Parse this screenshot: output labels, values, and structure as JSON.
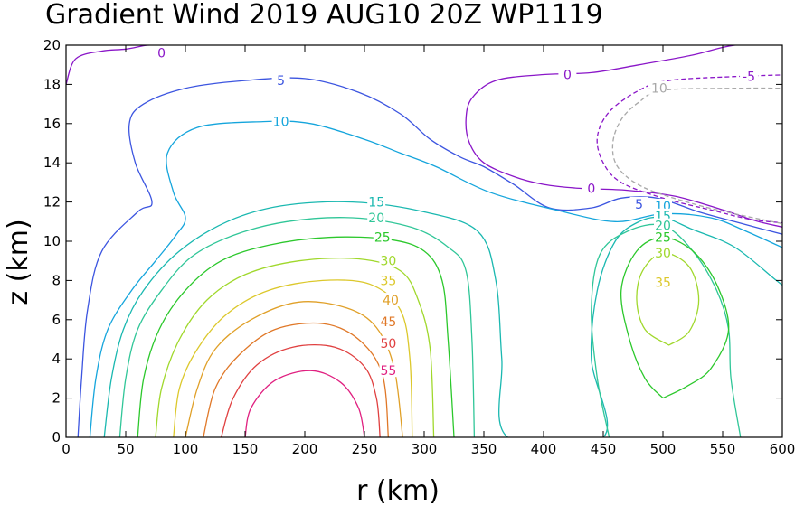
{
  "chart_data": {
    "type": "contour",
    "title": "Gradient Wind 2019 AUG10 20Z  WP1119",
    "xlabel": "r (km)",
    "ylabel": "z (km)",
    "xlim": [
      0,
      600
    ],
    "ylim": [
      0,
      20
    ],
    "x_ticks": [
      0,
      50,
      100,
      150,
      200,
      250,
      300,
      350,
      400,
      450,
      500,
      550,
      600
    ],
    "y_ticks": [
      0,
      2,
      4,
      6,
      8,
      10,
      12,
      14,
      16,
      18,
      20
    ],
    "grid": false,
    "contours": [
      {
        "level": "0",
        "color": "#8a16c8",
        "dashed": false,
        "labels": [
          [
            80,
            19.6
          ]
        ],
        "points": [
          [
            0,
            18
          ],
          [
            8,
            19.3
          ],
          [
            30,
            19.7
          ],
          [
            50,
            19.8
          ],
          [
            68,
            20.0
          ],
          [
            80,
            20.0
          ]
        ]
      },
      {
        "level": "0",
        "color": "#8a16c8",
        "dashed": false,
        "labels": [
          [
            420,
            18.5
          ],
          [
            440,
            12.7
          ]
        ],
        "points": [
          [
            610,
            20.2
          ],
          [
            560,
            20.0
          ],
          [
            525,
            19.5
          ],
          [
            480,
            19.0
          ],
          [
            440,
            18.6
          ],
          [
            400,
            18.5
          ],
          [
            360,
            18.2
          ],
          [
            340,
            17.3
          ],
          [
            335,
            16.2
          ],
          [
            338,
            15.0
          ],
          [
            350,
            14.0
          ],
          [
            375,
            13.3
          ],
          [
            400,
            12.9
          ],
          [
            430,
            12.7
          ],
          [
            470,
            12.6
          ],
          [
            510,
            12.3
          ],
          [
            550,
            11.6
          ],
          [
            580,
            11.0
          ],
          [
            610,
            10.6
          ]
        ]
      },
      {
        "level": "-5",
        "color": "#8a16c8",
        "dashed": true,
        "labels": [
          [
            572,
            18.4
          ]
        ],
        "points": [
          [
            610,
            18.5
          ],
          [
            560,
            18.4
          ],
          [
            505,
            18.2
          ],
          [
            480,
            17.7
          ],
          [
            455,
            16.6
          ],
          [
            445,
            15.3
          ],
          [
            450,
            14.0
          ],
          [
            465,
            13.0
          ],
          [
            500,
            12.2
          ],
          [
            540,
            11.6
          ],
          [
            575,
            11.1
          ],
          [
            610,
            10.9
          ]
        ]
      },
      {
        "level": "-10",
        "color": "#a8a8a8",
        "dashed": true,
        "labels": [
          [
            495,
            17.8
          ]
        ],
        "points": [
          [
            610,
            17.8
          ],
          [
            560,
            17.8
          ],
          [
            500,
            17.7
          ],
          [
            480,
            17.1
          ],
          [
            465,
            16.2
          ],
          [
            458,
            15.0
          ],
          [
            462,
            13.8
          ],
          [
            482,
            12.8
          ],
          [
            520,
            12.0
          ],
          [
            560,
            11.4
          ],
          [
            600,
            10.9
          ]
        ]
      },
      {
        "level": "5",
        "color": "#3c55e0",
        "dashed": false,
        "labels": [
          [
            180,
            18.2
          ],
          [
            480,
            11.9
          ]
        ],
        "points": [
          [
            10,
            0
          ],
          [
            13,
            3
          ],
          [
            18,
            6.5
          ],
          [
            30,
            9.5
          ],
          [
            60,
            11.5
          ],
          [
            72,
            12.0
          ],
          [
            58,
            14.0
          ],
          [
            53,
            16.0
          ],
          [
            65,
            17.0
          ],
          [
            100,
            17.8
          ],
          [
            150,
            18.2
          ],
          [
            200,
            18.3
          ],
          [
            245,
            17.6
          ],
          [
            280,
            16.5
          ],
          [
            305,
            15.2
          ],
          [
            330,
            14.3
          ],
          [
            350,
            13.8
          ],
          [
            375,
            12.9
          ],
          [
            405,
            11.7
          ],
          [
            440,
            11.7
          ],
          [
            465,
            12.2
          ],
          [
            495,
            12.2
          ],
          [
            530,
            11.5
          ],
          [
            560,
            11.0
          ],
          [
            610,
            10.2
          ]
        ]
      },
      {
        "level": "10",
        "color": "#15a5dc",
        "dashed": false,
        "labels": [
          [
            180,
            16.1
          ],
          [
            500,
            11.8
          ]
        ],
        "points": [
          [
            20,
            0
          ],
          [
            25,
            3
          ],
          [
            35,
            5.5
          ],
          [
            55,
            7.5
          ],
          [
            75,
            9.0
          ],
          [
            92,
            10.3
          ],
          [
            100,
            11.2
          ],
          [
            90,
            12.5
          ],
          [
            85,
            14.5
          ],
          [
            110,
            15.8
          ],
          [
            165,
            16.1
          ],
          [
            205,
            16.0
          ],
          [
            250,
            15.2
          ],
          [
            280,
            14.5
          ],
          [
            310,
            13.8
          ],
          [
            355,
            12.5
          ],
          [
            410,
            11.6
          ],
          [
            460,
            11.0
          ],
          [
            500,
            11.4
          ],
          [
            540,
            11.2
          ],
          [
            570,
            10.5
          ],
          [
            610,
            9.4
          ]
        ]
      },
      {
        "level": "15",
        "color": "#1ab8b0",
        "dashed": false,
        "labels": [
          [
            260,
            12.0
          ],
          [
            500,
            11.3
          ]
        ],
        "points": [
          [
            32,
            0
          ],
          [
            38,
            3
          ],
          [
            48,
            5.5
          ],
          [
            65,
            7.5
          ],
          [
            95,
            9.5
          ],
          [
            135,
            11.0
          ],
          [
            180,
            11.8
          ],
          [
            240,
            12.0
          ],
          [
            300,
            11.5
          ],
          [
            345,
            10.5
          ],
          [
            360,
            8.0
          ],
          [
            365,
            4.0
          ],
          [
            370,
            0
          ],
          [
            450,
            0
          ],
          [
            440,
            4.0
          ],
          [
            445,
            7.5
          ],
          [
            460,
            10.0
          ],
          [
            480,
            11.0
          ],
          [
            500,
            11.2
          ],
          [
            525,
            10.6
          ],
          [
            560,
            9.7
          ],
          [
            595,
            8.0
          ],
          [
            610,
            7.3
          ]
        ]
      },
      {
        "level": "20",
        "color": "#30c698",
        "dashed": false,
        "labels": [
          [
            260,
            11.2
          ],
          [
            500,
            10.8
          ]
        ],
        "points": [
          [
            45,
            0
          ],
          [
            50,
            3
          ],
          [
            60,
            5.5
          ],
          [
            80,
            7.5
          ],
          [
            105,
            9.2
          ],
          [
            140,
            10.3
          ],
          [
            185,
            11.0
          ],
          [
            240,
            11.2
          ],
          [
            290,
            10.7
          ],
          [
            320,
            9.7
          ],
          [
            335,
            8.5
          ],
          [
            340,
            5.0
          ],
          [
            342,
            0
          ]
        ]
      },
      {
        "level": "20",
        "color": "#30c698",
        "dashed": false,
        "labels": [],
        "points": [
          [
            565,
            0
          ],
          [
            557,
            3.0
          ],
          [
            555,
            5.5
          ],
          [
            545,
            7.5
          ],
          [
            525,
            9.5
          ],
          [
            500,
            10.8
          ],
          [
            470,
            10.5
          ],
          [
            447,
            9.3
          ],
          [
            440,
            6.5
          ],
          [
            445,
            3.0
          ],
          [
            455,
            0.0
          ]
        ]
      },
      {
        "level": "25",
        "color": "#2cc82c",
        "dashed": false,
        "labels": [
          [
            265,
            10.2
          ],
          [
            500,
            10.2
          ]
        ],
        "points": [
          [
            60,
            0
          ],
          [
            65,
            3
          ],
          [
            78,
            5.5
          ],
          [
            100,
            7.5
          ],
          [
            130,
            9.0
          ],
          [
            170,
            9.8
          ],
          [
            220,
            10.2
          ],
          [
            270,
            10.1
          ],
          [
            300,
            9.5
          ],
          [
            315,
            8.0
          ],
          [
            320,
            5.0
          ],
          [
            325,
            0
          ]
        ]
      },
      {
        "level": "25",
        "color": "#2cc82c",
        "dashed": false,
        "labels": [],
        "points": [
          [
            500,
            2.0
          ],
          [
            520,
            2.6
          ],
          [
            540,
            3.5
          ],
          [
            555,
            5.5
          ],
          [
            545,
            7.8
          ],
          [
            525,
            9.5
          ],
          [
            500,
            10.2
          ],
          [
            478,
            9.5
          ],
          [
            465,
            7.5
          ],
          [
            472,
            5.0
          ],
          [
            485,
            3.0
          ],
          [
            500,
            2.0
          ]
        ]
      },
      {
        "level": "30",
        "color": "#a0d82c",
        "dashed": false,
        "labels": [
          [
            270,
            9.0
          ],
          [
            500,
            9.4
          ]
        ],
        "points": [
          [
            75,
            0
          ],
          [
            80,
            2.5
          ],
          [
            95,
            5.0
          ],
          [
            118,
            7.0
          ],
          [
            150,
            8.3
          ],
          [
            195,
            9.0
          ],
          [
            245,
            9.1
          ],
          [
            280,
            8.5
          ],
          [
            295,
            7.0
          ],
          [
            305,
            4.5
          ],
          [
            308,
            0
          ]
        ]
      },
      {
        "level": "30",
        "color": "#a0d82c",
        "dashed": false,
        "labels": [],
        "points": [
          [
            505,
            4.7
          ],
          [
            522,
            5.4
          ],
          [
            530,
            7.0
          ],
          [
            522,
            8.7
          ],
          [
            500,
            9.4
          ],
          [
            483,
            8.5
          ],
          [
            478,
            7.0
          ],
          [
            485,
            5.5
          ],
          [
            505,
            4.7
          ]
        ]
      },
      {
        "level": "35",
        "color": "#dcc82c",
        "dashed": false,
        "labels": [
          [
            270,
            8.0
          ],
          [
            500,
            7.9
          ]
        ],
        "points": [
          [
            90,
            0
          ],
          [
            95,
            2.5
          ],
          [
            110,
            4.5
          ],
          [
            135,
            6.3
          ],
          [
            170,
            7.5
          ],
          [
            215,
            8.0
          ],
          [
            255,
            7.8
          ],
          [
            280,
            6.5
          ],
          [
            288,
            4.0
          ],
          [
            290,
            0
          ]
        ]
      },
      {
        "level": "40",
        "color": "#e0a028",
        "dashed": false,
        "labels": [
          [
            272,
            7.0
          ]
        ],
        "points": [
          [
            100,
            0
          ],
          [
            110,
            2.5
          ],
          [
            125,
            4.5
          ],
          [
            155,
            6.0
          ],
          [
            195,
            6.9
          ],
          [
            235,
            6.6
          ],
          [
            260,
            5.6
          ],
          [
            275,
            3.5
          ],
          [
            282,
            0
          ]
        ]
      },
      {
        "level": "45",
        "color": "#e07828",
        "dashed": false,
        "labels": [
          [
            270,
            5.9
          ]
        ],
        "points": [
          [
            115,
            0
          ],
          [
            125,
            2.5
          ],
          [
            145,
            4.2
          ],
          [
            175,
            5.5
          ],
          [
            215,
            5.8
          ],
          [
            245,
            5.0
          ],
          [
            265,
            3.2
          ],
          [
            270,
            0
          ]
        ]
      },
      {
        "level": "50",
        "color": "#e04040",
        "dashed": false,
        "labels": [
          [
            270,
            4.8
          ]
        ],
        "points": [
          [
            130,
            0
          ],
          [
            140,
            2.0
          ],
          [
            160,
            3.7
          ],
          [
            190,
            4.6
          ],
          [
            225,
            4.6
          ],
          [
            250,
            3.6
          ],
          [
            260,
            2.0
          ],
          [
            263,
            0
          ]
        ]
      },
      {
        "level": "55",
        "color": "#e02080",
        "dashed": false,
        "labels": [
          [
            270,
            3.4
          ]
        ],
        "points": [
          [
            150,
            0
          ],
          [
            155,
            1.5
          ],
          [
            175,
            2.9
          ],
          [
            205,
            3.4
          ],
          [
            230,
            2.8
          ],
          [
            245,
            1.5
          ],
          [
            250,
            0
          ]
        ]
      }
    ]
  }
}
